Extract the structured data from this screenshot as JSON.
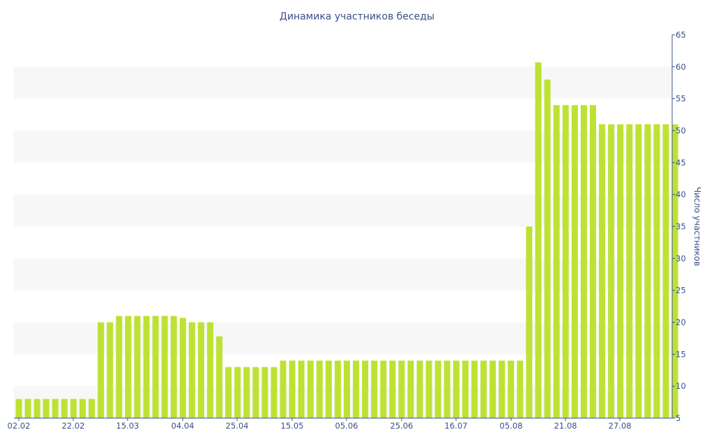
{
  "chart_data": {
    "type": "bar",
    "title": "Динамика участников беседы",
    "ylabel": "Число участников",
    "xlabel": "",
    "ylim": [
      5,
      65
    ],
    "y_axis_side": "right",
    "y_ticks": [
      5,
      10,
      15,
      20,
      25,
      30,
      35,
      40,
      45,
      50,
      55,
      60,
      65
    ],
    "x_tick_labels": [
      "02.02",
      "22.02",
      "15.03",
      "04.04",
      "25.04",
      "15.05",
      "05.06",
      "25.06",
      "16.07",
      "05.08",
      "21.08",
      "27.08"
    ],
    "grid": "alternating horizontal bands",
    "bar_color": "#bde234",
    "band_color": "#f7f7f7",
    "values": [
      8,
      8,
      8,
      8,
      8,
      8,
      8,
      8,
      8,
      20,
      20,
      21,
      21,
      21,
      21,
      21,
      21,
      21,
      20.7,
      20,
      20,
      20,
      17.8,
      13,
      13,
      13,
      13,
      13,
      13,
      14,
      14,
      14,
      14,
      14,
      14,
      14,
      14,
      14,
      14,
      14,
      14,
      14,
      14,
      14,
      14,
      14,
      14,
      14,
      14,
      14,
      14,
      14,
      14,
      14,
      14,
      14,
      35,
      60.7,
      58,
      54,
      54,
      54,
      54,
      54,
      51,
      51,
      51,
      51,
      51,
      51,
      51,
      51,
      51
    ]
  }
}
